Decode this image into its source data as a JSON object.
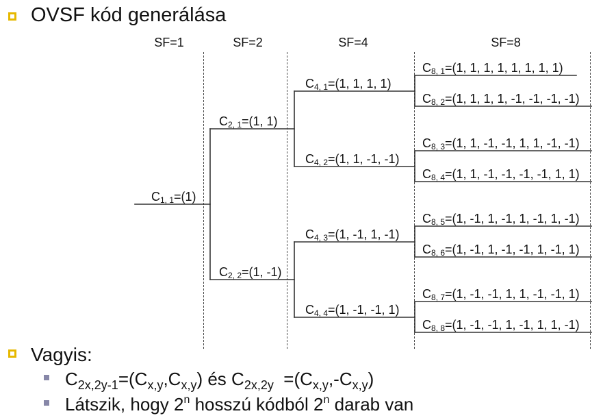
{
  "slide": {
    "title": "OVSF kód generálása"
  },
  "colors": {
    "title_bullet": "#e6b800",
    "sub_bullet": "#8787a8",
    "text": "#111111",
    "tree_line": "#333333",
    "divider": "#4a4a4a"
  },
  "columns": [
    "SF=1",
    "SF=2",
    "SF=4",
    "SF=8"
  ],
  "tree": {
    "sf1": [
      {
        "symbol": "C",
        "index": "1, 1",
        "code": "=(1)"
      }
    ],
    "sf2": [
      {
        "symbol": "C",
        "index": "2, 1",
        "code": "=(1, 1)"
      },
      {
        "symbol": "C",
        "index": "2, 2",
        "code": "=(1, -1)"
      }
    ],
    "sf4": [
      {
        "symbol": "C",
        "index": "4, 1",
        "code": "=(1, 1, 1, 1)"
      },
      {
        "symbol": "C",
        "index": "4, 2",
        "code": "=(1, 1, -1, -1)"
      },
      {
        "symbol": "C",
        "index": "4, 3",
        "code": "=(1, -1, 1, -1)"
      },
      {
        "symbol": "C",
        "index": "4, 4",
        "code": "=(1, -1, -1, 1)"
      }
    ],
    "sf8": [
      {
        "symbol": "C",
        "index": "8, 1",
        "code": "=(1, 1, 1, 1, 1, 1, 1, 1)"
      },
      {
        "symbol": "C",
        "index": "8, 2",
        "code": "=(1, 1, 1, 1, -1, -1, -1, -1)"
      },
      {
        "symbol": "C",
        "index": "8, 3",
        "code": "=(1, 1, -1, -1, 1, 1, -1, -1)"
      },
      {
        "symbol": "C",
        "index": "8, 4",
        "code": "=(1, 1, -1, -1, -1, -1, 1, 1)"
      },
      {
        "symbol": "C",
        "index": "8, 5",
        "code": "=(1, -1, 1, -1, 1, -1, 1, -1)"
      },
      {
        "symbol": "C",
        "index": "8, 6",
        "code": "=(1, -1, 1, -1, -1, 1, -1, 1)"
      },
      {
        "symbol": "C",
        "index": "8, 7",
        "code": "=(1, -1, -1, 1, 1, -1, -1, 1)"
      },
      {
        "symbol": "C",
        "index": "8, 8",
        "code": "=(1, -1, -1, 1, -1, 1, 1, -1)"
      }
    ]
  },
  "summary": {
    "heading": "Vagyis:",
    "bullets": [
      {
        "parts": [
          "C",
          "2x,2y-1",
          "=(C",
          "x,y",
          ",C",
          "x,y",
          ") és C",
          "2x,2y",
          "  =(C",
          "x,y",
          ",-C",
          "x,y",
          ")"
        ]
      },
      {
        "parts": [
          "Látszik, hogy 2",
          "n",
          " hosszú kódból 2",
          "n",
          " darab van"
        ]
      }
    ]
  }
}
